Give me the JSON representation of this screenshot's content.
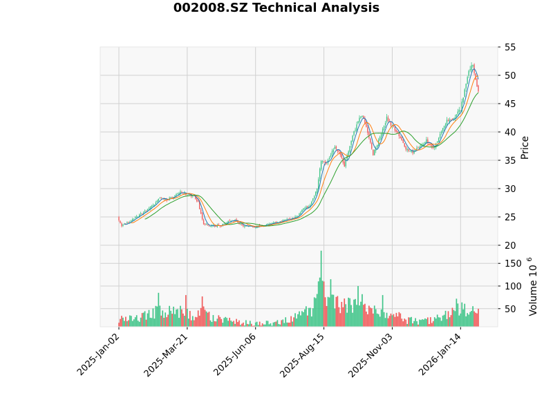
{
  "chart_data": {
    "type": "candlestick",
    "title": "002008.SZ Technical Analysis",
    "price_panel": {
      "ylabel": "Price",
      "ylim": [
        20,
        55
      ],
      "yticks": [
        20,
        25,
        30,
        35,
        40,
        45,
        50,
        55
      ],
      "grid": true
    },
    "volume_panel": {
      "ylabel": "Volume",
      "ylabel_exponent": "10",
      "ylabel_exponent_power": "6",
      "ylim": [
        10,
        190
      ],
      "yticks": [
        50,
        100,
        150
      ],
      "grid": true
    },
    "x_tick_labels": [
      "2025-Jan-02",
      "2025-Mar-21",
      "2025-Jun-06",
      "2025-Aug-15",
      "2025-Nov-03",
      "2026-Jan-14"
    ],
    "x_tick_index": [
      0,
      50,
      100,
      150,
      200,
      250
    ],
    "n_sessions": 264,
    "colors": {
      "up": "#3fc488",
      "down": "#f05a5a",
      "ma_short": "#1f77b4",
      "ma_mid": "#ff7f0e",
      "ma_long": "#2ca02c",
      "panel_bg": "#f8f8f8",
      "grid": "#d0d0d0"
    },
    "moving_averages": [
      {
        "key": "ma_short",
        "window": 5
      },
      {
        "key": "ma_mid",
        "window": 10
      },
      {
        "key": "ma_long",
        "window": 20
      }
    ],
    "close_anchors": [
      {
        "i": 0,
        "v": 24.5
      },
      {
        "i": 2,
        "v": 23.5
      },
      {
        "i": 10,
        "v": 24.5
      },
      {
        "i": 20,
        "v": 26.2
      },
      {
        "i": 25,
        "v": 27.0
      },
      {
        "i": 30,
        "v": 28.5
      },
      {
        "i": 35,
        "v": 28.0
      },
      {
        "i": 40,
        "v": 28.6
      },
      {
        "i": 45,
        "v": 29.4
      },
      {
        "i": 50,
        "v": 29.0
      },
      {
        "i": 55,
        "v": 28.6
      },
      {
        "i": 58,
        "v": 27.5
      },
      {
        "i": 60,
        "v": 25.5
      },
      {
        "i": 62,
        "v": 23.8
      },
      {
        "i": 65,
        "v": 23.5
      },
      {
        "i": 75,
        "v": 23.5
      },
      {
        "i": 80,
        "v": 24.2
      },
      {
        "i": 85,
        "v": 24.5
      },
      {
        "i": 90,
        "v": 23.5
      },
      {
        "i": 100,
        "v": 23.2
      },
      {
        "i": 110,
        "v": 23.8
      },
      {
        "i": 120,
        "v": 24.3
      },
      {
        "i": 130,
        "v": 25.0
      },
      {
        "i": 135,
        "v": 26.5
      },
      {
        "i": 140,
        "v": 27.0
      },
      {
        "i": 145,
        "v": 30.0
      },
      {
        "i": 148,
        "v": 35.0
      },
      {
        "i": 152,
        "v": 34.5
      },
      {
        "i": 158,
        "v": 37.5
      },
      {
        "i": 162,
        "v": 36.0
      },
      {
        "i": 165,
        "v": 34.0
      },
      {
        "i": 170,
        "v": 38.5
      },
      {
        "i": 175,
        "v": 42.0
      },
      {
        "i": 178,
        "v": 43.0
      },
      {
        "i": 182,
        "v": 40.0
      },
      {
        "i": 186,
        "v": 36.0
      },
      {
        "i": 190,
        "v": 38.5
      },
      {
        "i": 196,
        "v": 42.5
      },
      {
        "i": 200,
        "v": 41.0
      },
      {
        "i": 205,
        "v": 39.5
      },
      {
        "i": 210,
        "v": 37.0
      },
      {
        "i": 215,
        "v": 36.5
      },
      {
        "i": 220,
        "v": 37.5
      },
      {
        "i": 225,
        "v": 38.5
      },
      {
        "i": 230,
        "v": 37.0
      },
      {
        "i": 235,
        "v": 39.5
      },
      {
        "i": 240,
        "v": 42.0
      },
      {
        "i": 245,
        "v": 42.5
      },
      {
        "i": 250,
        "v": 44.0
      },
      {
        "i": 253,
        "v": 47.5
      },
      {
        "i": 256,
        "v": 51.0
      },
      {
        "i": 259,
        "v": 52.0
      },
      {
        "i": 261,
        "v": 49.0
      },
      {
        "i": 263,
        "v": 47.0
      }
    ],
    "volume_anchors": [
      {
        "i": 0,
        "v": 25
      },
      {
        "i": 15,
        "v": 28
      },
      {
        "i": 20,
        "v": 35
      },
      {
        "i": 30,
        "v": 45
      },
      {
        "i": 40,
        "v": 42
      },
      {
        "i": 48,
        "v": 45
      },
      {
        "i": 55,
        "v": 30
      },
      {
        "i": 62,
        "v": 45
      },
      {
        "i": 68,
        "v": 28
      },
      {
        "i": 80,
        "v": 25
      },
      {
        "i": 90,
        "v": 20
      },
      {
        "i": 100,
        "v": 16
      },
      {
        "i": 115,
        "v": 20
      },
      {
        "i": 125,
        "v": 25
      },
      {
        "i": 135,
        "v": 40
      },
      {
        "i": 142,
        "v": 45
      },
      {
        "i": 147,
        "v": 100
      },
      {
        "i": 150,
        "v": 80
      },
      {
        "i": 160,
        "v": 60
      },
      {
        "i": 170,
        "v": 55
      },
      {
        "i": 178,
        "v": 65
      },
      {
        "i": 185,
        "v": 45
      },
      {
        "i": 195,
        "v": 45
      },
      {
        "i": 200,
        "v": 40
      },
      {
        "i": 210,
        "v": 25
      },
      {
        "i": 220,
        "v": 22
      },
      {
        "i": 230,
        "v": 25
      },
      {
        "i": 240,
        "v": 38
      },
      {
        "i": 250,
        "v": 48
      },
      {
        "i": 263,
        "v": 40
      }
    ],
    "volume_spikes": [
      {
        "i": 29,
        "v": 85
      },
      {
        "i": 49,
        "v": 80
      },
      {
        "i": 61,
        "v": 77
      },
      {
        "i": 143,
        "v": 75
      },
      {
        "i": 148,
        "v": 178
      },
      {
        "i": 150,
        "v": 110
      },
      {
        "i": 155,
        "v": 115
      },
      {
        "i": 175,
        "v": 100
      },
      {
        "i": 178,
        "v": 82
      },
      {
        "i": 193,
        "v": 80
      },
      {
        "i": 247,
        "v": 72
      }
    ]
  }
}
